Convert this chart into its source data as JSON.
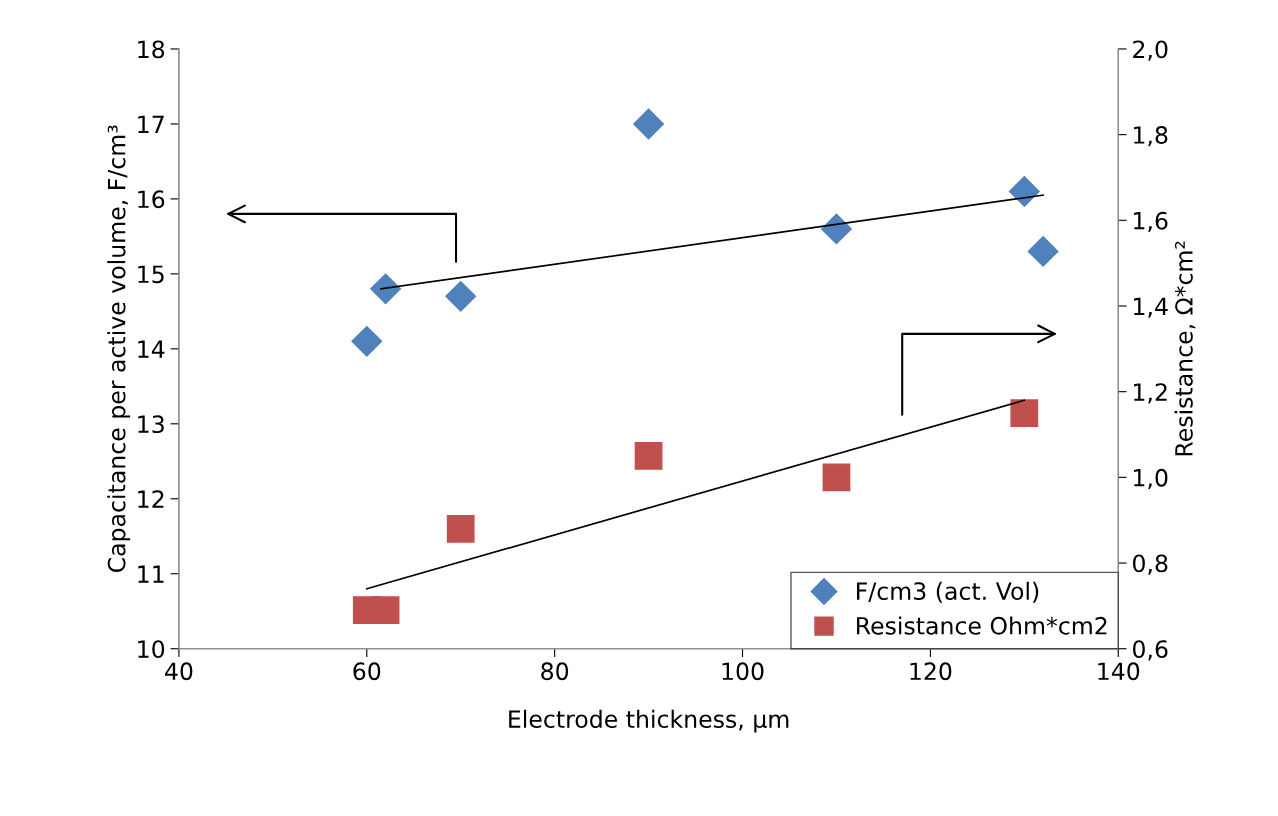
{
  "chart_data": {
    "type": "scatter",
    "xlabel": "Electrode thickness, µm",
    "ylabel": "Capacitance per active volume, F/cm³",
    "y2label": "Resistance, Ω*cm²",
    "xlim": [
      40,
      140
    ],
    "xticks": [
      40,
      60,
      80,
      100,
      120,
      140
    ],
    "ylim": [
      10,
      18
    ],
    "yticks": [
      10,
      11,
      12,
      13,
      14,
      15,
      16,
      17,
      18
    ],
    "y2lim": [
      0.6,
      2.0
    ],
    "y2ticks": [
      {
        "value": 0.6,
        "label": "0,6"
      },
      {
        "value": 0.8,
        "label": "0,8"
      },
      {
        "value": 1.0,
        "label": "1,0"
      },
      {
        "value": 1.2,
        "label": "1,2"
      },
      {
        "value": 1.4,
        "label": "1,4"
      },
      {
        "value": 1.6,
        "label": "1,6"
      },
      {
        "value": 1.8,
        "label": "1,8"
      },
      {
        "value": 2.0,
        "label": "2,0"
      }
    ],
    "grid": false,
    "legend": "bottom right",
    "series": [
      {
        "name": "F/cm3 (act. Vol)",
        "marker": "diamond",
        "color": "#4f81bd",
        "x": [
          60,
          62,
          70,
          90,
          110,
          130,
          132
        ],
        "values": [
          14.1,
          14.8,
          14.7,
          17.0,
          15.6,
          16.1,
          15.3
        ]
      },
      {
        "name": "Resistance Ohm*cm2",
        "marker": "square",
        "axis": "y2",
        "color": "#c0504d",
        "x": [
          60,
          62,
          70,
          90,
          110,
          130
        ],
        "values": [
          0.69,
          0.69,
          0.88,
          1.05,
          1.0,
          1.15
        ]
      },
      {
        "type": "line",
        "color": "#000000",
        "x": [
          61.5,
          132
        ],
        "values": [
          14.8,
          16.05
        ]
      },
      {
        "type": "line",
        "axis": "y2",
        "color": "#000000",
        "x": [
          60,
          130
        ],
        "values": [
          0.74,
          1.18
        ]
      }
    ]
  }
}
